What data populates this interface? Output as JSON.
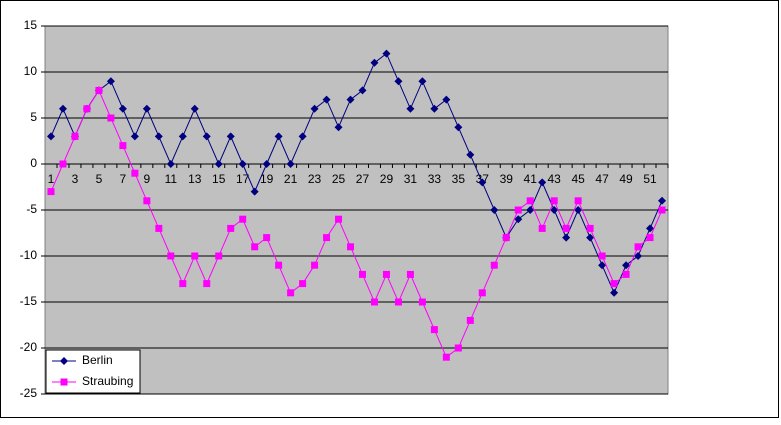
{
  "chart_data": {
    "type": "line",
    "categories": [
      1,
      null,
      3,
      null,
      5,
      null,
      7,
      null,
      9,
      null,
      11,
      null,
      13,
      null,
      15,
      null,
      17,
      null,
      19,
      null,
      21,
      null,
      23,
      null,
      25,
      null,
      27,
      null,
      29,
      null,
      31,
      null,
      33,
      null,
      35,
      null,
      37,
      null,
      39,
      null,
      41,
      null,
      43,
      null,
      45,
      null,
      47,
      null,
      49,
      null,
      51,
      null
    ],
    "series": [
      {
        "name": "Berlin",
        "color": "#000080",
        "marker": "diamond",
        "values": [
          3,
          6,
          3,
          6,
          8,
          9,
          6,
          3,
          6,
          3,
          0,
          3,
          6,
          3,
          0,
          3,
          0,
          -3,
          0,
          3,
          0,
          3,
          6,
          7,
          4,
          7,
          8,
          11,
          12,
          9,
          6,
          9,
          6,
          7,
          4,
          1,
          -2,
          -5,
          -8,
          -6,
          -5,
          -2,
          -5,
          -8,
          -5,
          -8,
          -11,
          -14,
          -11,
          -10,
          -7,
          -4
        ]
      },
      {
        "name": "Straubing",
        "color": "#ff00ff",
        "marker": "square",
        "values": [
          -3,
          0,
          3,
          6,
          8,
          5,
          2,
          -1,
          -4,
          -7,
          -10,
          -13,
          -10,
          -13,
          -10,
          -7,
          -6,
          -9,
          -8,
          -11,
          -14,
          -13,
          -11,
          -8,
          -6,
          -9,
          -12,
          -15,
          -12,
          -15,
          -12,
          -15,
          -18,
          -21,
          -20,
          -17,
          -14,
          -11,
          -8,
          -5,
          -4,
          -7,
          -4,
          -7,
          -4,
          -7,
          -10,
          -13,
          -12,
          -9,
          -8,
          -5
        ]
      }
    ],
    "ylim": [
      -25,
      15
    ],
    "yticks": [
      -25,
      -20,
      -15,
      -10,
      -5,
      0,
      5,
      10,
      15
    ],
    "grid": true,
    "legend": "lower left",
    "plot_background": "#c0c0c0"
  }
}
